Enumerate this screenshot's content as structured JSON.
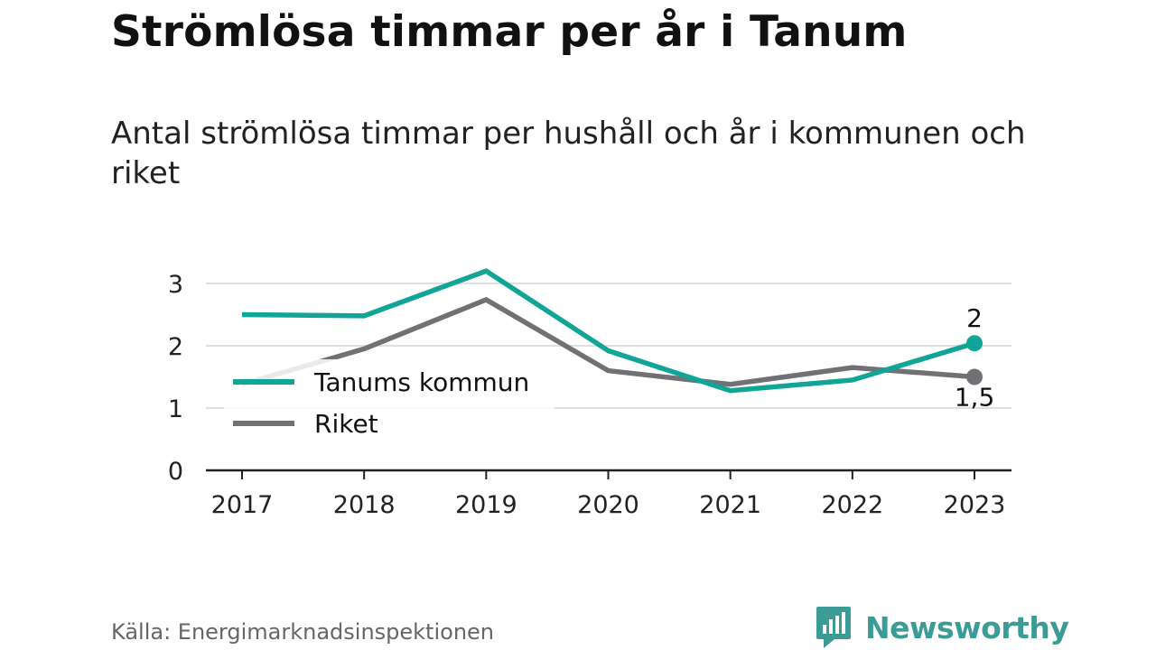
{
  "header": {
    "title": "Strömlösa timmar per år i Tanum",
    "subtitle": "Antal strömlösa timmar per hushåll och år i kommunen och riket"
  },
  "footer": {
    "source": "Källa: Energimarknadsinspektionen",
    "brand": "Newsworthy",
    "brand_icon": "newsworthy-logo-icon",
    "brand_color": "#3b9c96"
  },
  "chart_data": {
    "type": "line",
    "title": "Strömlösa timmar per år i Tanum",
    "subtitle": "Antal strömlösa timmar per hushåll och år i kommunen och riket",
    "categories": [
      "2017",
      "2018",
      "2019",
      "2020",
      "2021",
      "2022",
      "2023"
    ],
    "ylim": [
      0,
      3.3
    ],
    "yticks": [
      0,
      1,
      2,
      3
    ],
    "grid": true,
    "legend_position": "left-middle",
    "series": [
      {
        "name": "Tanums kommun",
        "color": "#11a597",
        "values": [
          2.5,
          2.48,
          3.2,
          1.92,
          1.28,
          1.45,
          2.04
        ],
        "end_label": "2"
      },
      {
        "name": "Riket",
        "color": "#707075",
        "values": [
          1.38,
          1.95,
          2.74,
          1.6,
          1.38,
          1.65,
          1.5
        ],
        "end_label": "1,5"
      }
    ]
  }
}
